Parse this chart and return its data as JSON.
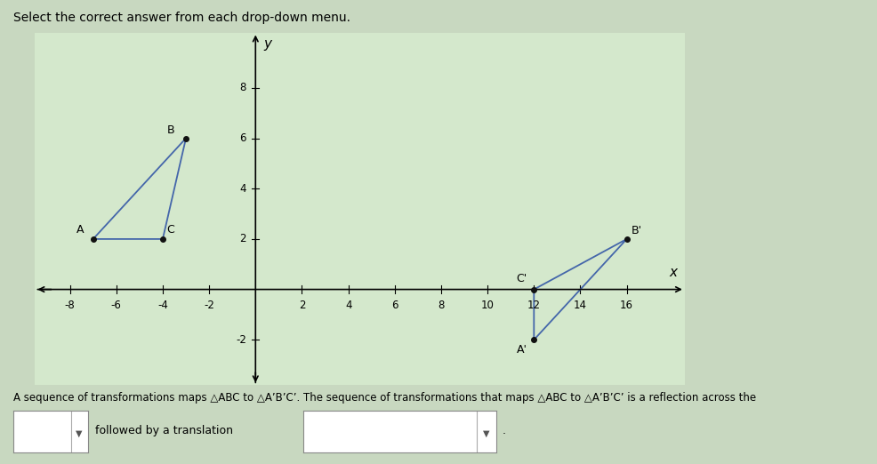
{
  "title": "Select the correct answer from each drop-down menu.",
  "outer_bg": "#c8d8c0",
  "panel_bg": "#ccddc8",
  "graph_bg": "#d4e8cc",
  "triangle_ABC": {
    "A": [
      -7,
      2
    ],
    "B": [
      -3,
      6
    ],
    "C": [
      -4,
      2
    ]
  },
  "triangle_A1B1C1": {
    "A1": [
      12,
      -2
    ],
    "B1": [
      16,
      2
    ],
    "C1": [
      12,
      0
    ]
  },
  "triangle_color": "#4466aa",
  "point_color": "#111111",
  "xlim": [
    -9.5,
    18.5
  ],
  "ylim": [
    -3.8,
    10.2
  ],
  "xticks": [
    -8,
    -6,
    -4,
    -2,
    2,
    4,
    6,
    8,
    10,
    12,
    14,
    16
  ],
  "yticks": [
    -2,
    2,
    4,
    6,
    8
  ],
  "xlabel": "x",
  "ylabel": "y",
  "caption": "A sequence of transformations maps △ABC to △A’B’C’. The sequence of transformations that maps △ABC to △A’B’C’ is a reflection across the",
  "dropdown2_text": "followed by a translation",
  "label_fontsize": 9,
  "tick_fontsize": 8.5
}
